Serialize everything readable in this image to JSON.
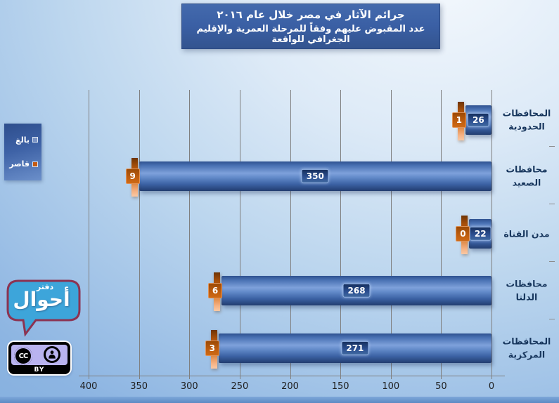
{
  "title": {
    "line1": "جرائم الآثار في مصر خلال عام ٢٠١٦",
    "line2": "عدد المقبوض عليهم وفقاً للمرحلة العمرية والإقليم الجغرافي للواقعة"
  },
  "legend": {
    "items": [
      {
        "label": "بالغ",
        "color": "#7b93c4"
      },
      {
        "label": "قاصر",
        "color": "#c55a11"
      }
    ]
  },
  "logo": {
    "text_main": "أحوال",
    "text_small": "دفتر"
  },
  "license": {
    "mark": "CC",
    "attribution": "BY"
  },
  "chart_data": {
    "type": "bar",
    "orientation": "horizontal",
    "stacked": true,
    "value_axis_reversed": true,
    "title": "جرائم الآثار في مصر خلال عام ٢٠١٦",
    "subtitle": "عدد المقبوض عليهم وفقاً للمرحلة العمرية والإقليم الجغرافي للواقعة",
    "categories": [
      "المحافظات الحدودية",
      "محافظات الصعيد",
      "مدن القناة",
      "محافظات الدلتا",
      "المحافظات المركزية"
    ],
    "category_label_lines": [
      [
        "المحافظات",
        "الحدودية"
      ],
      [
        "محافظات الصعيد"
      ],
      [
        "مدن القناة"
      ],
      [
        "محافظات الدلتا"
      ],
      [
        "المحافظات",
        "المركزية"
      ]
    ],
    "series": [
      {
        "name": "بالغ",
        "color": "#4472c4",
        "values": [
          26,
          350,
          22,
          268,
          271
        ]
      },
      {
        "name": "قاصر",
        "color": "#c55a11",
        "values": [
          1,
          9,
          0,
          6,
          3
        ]
      }
    ],
    "xlim": [
      400,
      0
    ],
    "x_ticks": [
      400,
      350,
      300,
      250,
      200,
      150,
      100,
      50,
      0
    ],
    "gridlines": true,
    "legend_position": "left"
  }
}
